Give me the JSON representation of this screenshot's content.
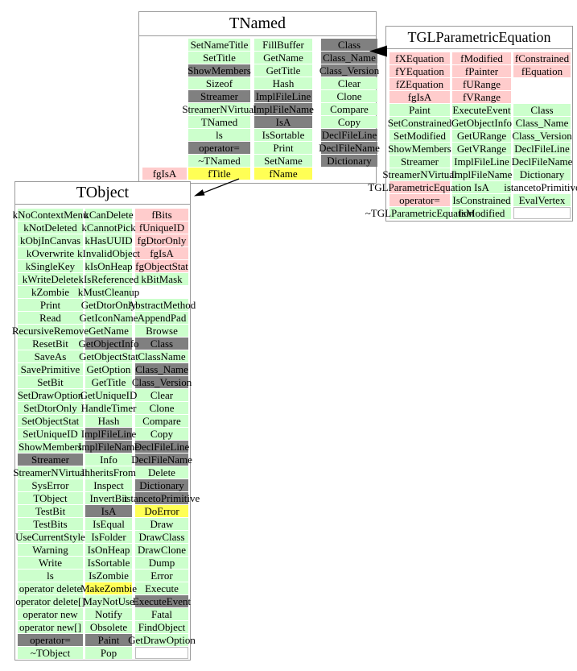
{
  "page": {
    "background": "#ffffff"
  },
  "colors": {
    "green": "#ccffcc",
    "pink": "#ffcccc",
    "gray": "#808080",
    "yellow": "#ffff55",
    "white": "#ffffff"
  },
  "boxes": [
    {
      "title": "TNamed",
      "columns": [
        [
          null,
          null,
          null,
          null,
          null,
          null,
          null,
          null,
          null,
          null,
          {
            "t": "fgIsA",
            "c": "pink"
          }
        ],
        [
          {
            "t": "SetNameTitle",
            "c": "green"
          },
          {
            "t": "SetTitle",
            "c": "green"
          },
          {
            "t": "ShowMembers",
            "c": "gray"
          },
          {
            "t": "Sizeof",
            "c": "green"
          },
          {
            "t": "Streamer",
            "c": "gray"
          },
          {
            "t": "StreamerNVirtual",
            "c": "green"
          },
          {
            "t": "TNamed",
            "c": "green"
          },
          {
            "t": "ls",
            "c": "green"
          },
          {
            "t": "operator=",
            "c": "gray"
          },
          {
            "t": "~TNamed",
            "c": "green"
          },
          {
            "t": "fTitle",
            "c": "yellow"
          }
        ],
        [
          {
            "t": "FillBuffer",
            "c": "green"
          },
          {
            "t": "GetName",
            "c": "green"
          },
          {
            "t": "GetTitle",
            "c": "green"
          },
          {
            "t": "Hash",
            "c": "green"
          },
          {
            "t": "ImplFileLine",
            "c": "gray"
          },
          {
            "t": "ImplFileName",
            "c": "gray"
          },
          {
            "t": "IsA",
            "c": "gray"
          },
          {
            "t": "IsSortable",
            "c": "green"
          },
          {
            "t": "Print",
            "c": "green"
          },
          {
            "t": "SetName",
            "c": "green"
          },
          {
            "t": "fName",
            "c": "yellow"
          }
        ],
        [
          {
            "t": "Class",
            "c": "gray"
          },
          {
            "t": "Class_Name",
            "c": "gray"
          },
          {
            "t": "Class_Version",
            "c": "gray"
          },
          {
            "t": "Clear",
            "c": "green"
          },
          {
            "t": "Clone",
            "c": "green"
          },
          {
            "t": "Compare",
            "c": "green"
          },
          {
            "t": "Copy",
            "c": "green"
          },
          {
            "t": "DeclFileLine",
            "c": "gray"
          },
          {
            "t": "DeclFileName",
            "c": "gray"
          },
          {
            "t": "Dictionary",
            "c": "gray"
          },
          null
        ]
      ]
    },
    {
      "title": "TGLParametricEquation",
      "columns": [
        [
          {
            "t": "fXEquation",
            "c": "pink"
          },
          {
            "t": "fYEquation",
            "c": "pink"
          },
          {
            "t": "fZEquation",
            "c": "pink"
          },
          {
            "t": "fgIsA",
            "c": "pink"
          },
          {
            "t": "Paint",
            "c": "green"
          },
          {
            "t": "SetConstrained",
            "c": "green"
          },
          {
            "t": "SetModified",
            "c": "green"
          },
          {
            "t": "ShowMembers",
            "c": "green"
          },
          {
            "t": "Streamer",
            "c": "green"
          },
          {
            "t": "StreamerNVirtual",
            "c": "green"
          },
          {
            "t": "TGLParametricEquation",
            "c": "pink"
          },
          {
            "t": "operator=",
            "c": "pink"
          },
          {
            "t": "~TGLParametricEquation",
            "c": "green"
          }
        ],
        [
          {
            "t": "fModified",
            "c": "pink"
          },
          {
            "t": "fPainter",
            "c": "pink"
          },
          {
            "t": "fURange",
            "c": "pink"
          },
          {
            "t": "fVRange",
            "c": "pink"
          },
          {
            "t": "ExecuteEvent",
            "c": "green"
          },
          {
            "t": "GetObjectInfo",
            "c": "green"
          },
          {
            "t": "GetURange",
            "c": "green"
          },
          {
            "t": "GetVRange",
            "c": "green"
          },
          {
            "t": "ImplFileLine",
            "c": "green"
          },
          {
            "t": "ImplFileName",
            "c": "green"
          },
          {
            "t": "IsA",
            "c": "green"
          },
          {
            "t": "IsConstrained",
            "c": "green"
          },
          {
            "t": "IsModified",
            "c": "green"
          }
        ],
        [
          {
            "t": "fConstrained",
            "c": "pink"
          },
          {
            "t": "fEquation",
            "c": "pink"
          },
          null,
          null,
          {
            "t": "Class",
            "c": "green"
          },
          {
            "t": "Class_Name",
            "c": "green"
          },
          {
            "t": "Class_Version",
            "c": "green"
          },
          {
            "t": "DeclFileLine",
            "c": "green"
          },
          {
            "t": "DeclFileName",
            "c": "green"
          },
          {
            "t": "Dictionary",
            "c": "green"
          },
          {
            "t": "istancetoPrimitive",
            "c": "none"
          },
          {
            "t": "EvalVertex",
            "c": "green"
          },
          {
            "t": "",
            "c": "white"
          }
        ]
      ]
    },
    {
      "title": "TObject",
      "columns": [
        [
          {
            "t": "kNoContextMenu",
            "c": "green"
          },
          {
            "t": "kNotDeleted",
            "c": "green"
          },
          {
            "t": "kObjInCanvas",
            "c": "green"
          },
          {
            "t": "kOverwrite",
            "c": "green"
          },
          {
            "t": "kSingleKey",
            "c": "green"
          },
          {
            "t": "kWriteDelete",
            "c": "green"
          },
          {
            "t": "kZombie",
            "c": "green"
          },
          {
            "t": "Print",
            "c": "green"
          },
          {
            "t": "Read",
            "c": "green"
          },
          {
            "t": "RecursiveRemove",
            "c": "green"
          },
          {
            "t": "ResetBit",
            "c": "green"
          },
          {
            "t": "SaveAs",
            "c": "green"
          },
          {
            "t": "SavePrimitive",
            "c": "green"
          },
          {
            "t": "SetBit",
            "c": "green"
          },
          {
            "t": "SetDrawOption",
            "c": "green"
          },
          {
            "t": "SetDtorOnly",
            "c": "green"
          },
          {
            "t": "SetObjectStat",
            "c": "green"
          },
          {
            "t": "SetUniqueID",
            "c": "green"
          },
          {
            "t": "ShowMembers",
            "c": "green"
          },
          {
            "t": "Streamer",
            "c": "gray"
          },
          {
            "t": "StreamerNVirtual",
            "c": "green"
          },
          {
            "t": "SysError",
            "c": "green"
          },
          {
            "t": "TObject",
            "c": "green"
          },
          {
            "t": "TestBit",
            "c": "green"
          },
          {
            "t": "TestBits",
            "c": "green"
          },
          {
            "t": "UseCurrentStyle",
            "c": "green"
          },
          {
            "t": "Warning",
            "c": "green"
          },
          {
            "t": "Write",
            "c": "green"
          },
          {
            "t": "ls",
            "c": "green"
          },
          {
            "t": "operator delete",
            "c": "green"
          },
          {
            "t": "operator delete[]",
            "c": "green"
          },
          {
            "t": "operator new",
            "c": "green"
          },
          {
            "t": "operator new[]",
            "c": "green"
          },
          {
            "t": "operator=",
            "c": "gray"
          },
          {
            "t": "~TObject",
            "c": "green"
          }
        ],
        [
          {
            "t": "kCanDelete",
            "c": "green"
          },
          {
            "t": "kCannotPick",
            "c": "green"
          },
          {
            "t": "kHasUUID",
            "c": "green"
          },
          {
            "t": "kInvalidObject",
            "c": "green"
          },
          {
            "t": "kIsOnHeap",
            "c": "green"
          },
          {
            "t": "kIsReferenced",
            "c": "green"
          },
          {
            "t": "kMustCleanup",
            "c": "green"
          },
          {
            "t": "GetDtorOnly",
            "c": "green"
          },
          {
            "t": "GetIconName",
            "c": "green"
          },
          {
            "t": "GetName",
            "c": "green"
          },
          {
            "t": "GetObjectInfo",
            "c": "gray"
          },
          {
            "t": "GetObjectStat",
            "c": "green"
          },
          {
            "t": "GetOption",
            "c": "green"
          },
          {
            "t": "GetTitle",
            "c": "green"
          },
          {
            "t": "GetUniqueID",
            "c": "green"
          },
          {
            "t": "HandleTimer",
            "c": "green"
          },
          {
            "t": "Hash",
            "c": "green"
          },
          {
            "t": "ImplFileLine",
            "c": "gray"
          },
          {
            "t": "ImplFileName",
            "c": "gray"
          },
          {
            "t": "Info",
            "c": "green"
          },
          {
            "t": "InheritsFrom",
            "c": "green"
          },
          {
            "t": "Inspect",
            "c": "green"
          },
          {
            "t": "InvertBit",
            "c": "green"
          },
          {
            "t": "IsA",
            "c": "gray"
          },
          {
            "t": "IsEqual",
            "c": "green"
          },
          {
            "t": "IsFolder",
            "c": "green"
          },
          {
            "t": "IsOnHeap",
            "c": "green"
          },
          {
            "t": "IsSortable",
            "c": "green"
          },
          {
            "t": "IsZombie",
            "c": "green"
          },
          {
            "t": "MakeZombie",
            "c": "yellow"
          },
          {
            "t": "MayNotUse",
            "c": "green"
          },
          {
            "t": "Notify",
            "c": "green"
          },
          {
            "t": "Obsolete",
            "c": "green"
          },
          {
            "t": "Paint",
            "c": "gray"
          },
          {
            "t": "Pop",
            "c": "green"
          }
        ],
        [
          {
            "t": "fBits",
            "c": "pink"
          },
          {
            "t": "fUniqueID",
            "c": "pink"
          },
          {
            "t": "fgDtorOnly",
            "c": "pink"
          },
          {
            "t": "fgIsA",
            "c": "pink"
          },
          {
            "t": "fgObjectStat",
            "c": "pink"
          },
          {
            "t": "kBitMask",
            "c": "green"
          },
          null,
          {
            "t": "AbstractMethod",
            "c": "green"
          },
          {
            "t": "AppendPad",
            "c": "green"
          },
          {
            "t": "Browse",
            "c": "green"
          },
          {
            "t": "Class",
            "c": "gray"
          },
          {
            "t": "ClassName",
            "c": "green"
          },
          {
            "t": "Class_Name",
            "c": "gray"
          },
          {
            "t": "Class_Version",
            "c": "gray"
          },
          {
            "t": "Clear",
            "c": "green"
          },
          {
            "t": "Clone",
            "c": "green"
          },
          {
            "t": "Compare",
            "c": "green"
          },
          {
            "t": "Copy",
            "c": "green"
          },
          {
            "t": "DeclFileLine",
            "c": "gray"
          },
          {
            "t": "DeclFileName",
            "c": "gray"
          },
          {
            "t": "Delete",
            "c": "green"
          },
          {
            "t": "Dictionary",
            "c": "gray"
          },
          {
            "t": "istancetoPrimitive",
            "c": "gray"
          },
          {
            "t": "DoError",
            "c": "yellow"
          },
          {
            "t": "Draw",
            "c": "green"
          },
          {
            "t": "DrawClass",
            "c": "green"
          },
          {
            "t": "DrawClone",
            "c": "green"
          },
          {
            "t": "Dump",
            "c": "green"
          },
          {
            "t": "Error",
            "c": "green"
          },
          {
            "t": "Execute",
            "c": "green"
          },
          {
            "t": "ExecuteEvent",
            "c": "gray"
          },
          {
            "t": "Fatal",
            "c": "green"
          },
          {
            "t": "FindObject",
            "c": "green"
          },
          {
            "t": "GetDrawOption",
            "c": "green"
          },
          {
            "t": "",
            "c": "white"
          }
        ]
      ]
    }
  ]
}
